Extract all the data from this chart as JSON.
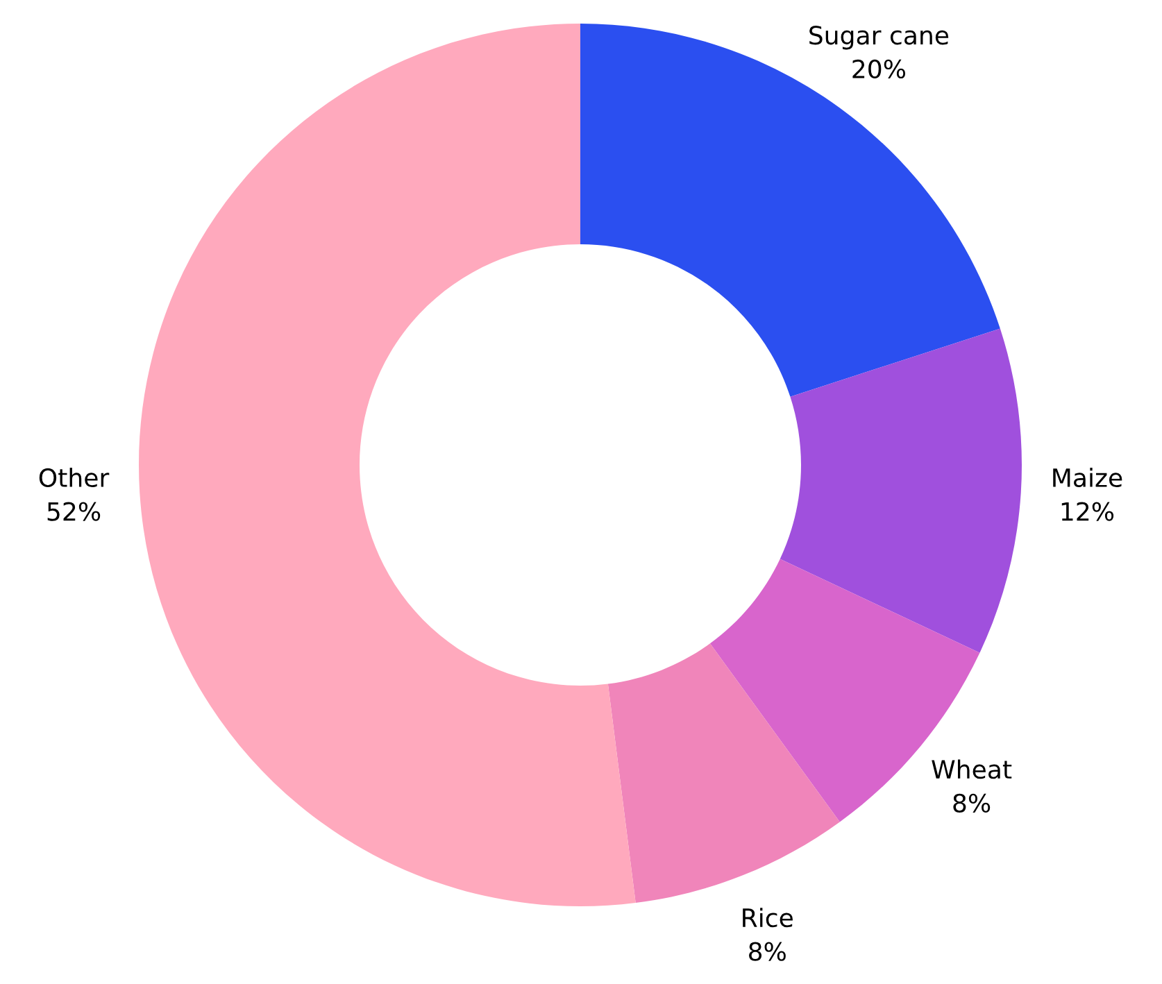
{
  "chart_data": {
    "type": "donut",
    "categories": [
      "Sugar cane",
      "Maize",
      "Wheat",
      "Rice",
      "Other"
    ],
    "values": [
      20,
      12,
      8,
      8,
      52
    ],
    "value_labels": [
      "20%",
      "12%",
      "8%",
      "8%",
      "52%"
    ],
    "colors": [
      "#2b4ff0",
      "#a050dd",
      "#d865cc",
      "#f085ba",
      "#ffa9bd"
    ],
    "legend": false
  }
}
